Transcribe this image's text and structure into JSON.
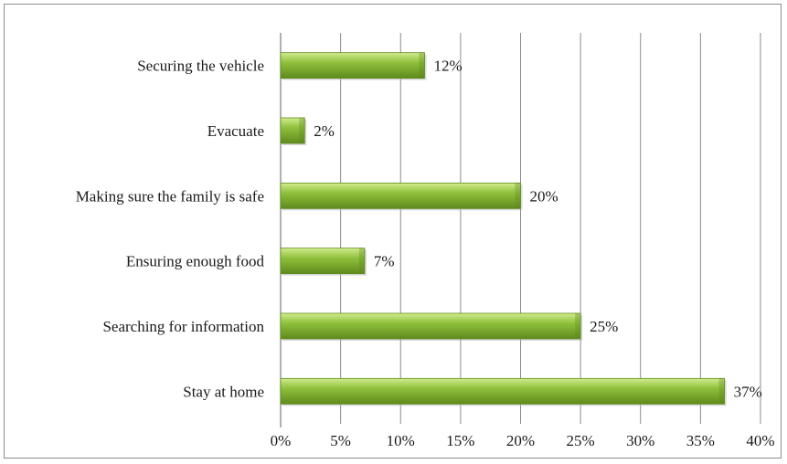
{
  "chart_data": {
    "type": "bar",
    "orientation": "horizontal",
    "categories": [
      "Securing the vehicle",
      "Evacuate",
      "Making sure the family is safe",
      "Ensuring enough food",
      "Searching for information",
      "Stay at home"
    ],
    "values": [
      12,
      2,
      20,
      7,
      25,
      37
    ],
    "data_labels": [
      "12%",
      "2%",
      "20%",
      "7%",
      "25%",
      "37%"
    ],
    "x_ticks": [
      0,
      5,
      10,
      15,
      20,
      25,
      30,
      35,
      40
    ],
    "x_tick_labels": [
      "0%",
      "5%",
      "10%",
      "15%",
      "20%",
      "25%",
      "30%",
      "35%",
      "40%"
    ],
    "xlim": [
      0,
      40
    ],
    "title": "",
    "xlabel": "",
    "ylabel": "",
    "grid": "vertical",
    "legend": "none",
    "bar_color": "#8dbf3a",
    "bar_color_light": "#d2ec8e",
    "bar_color_dark": "#5f8a1e",
    "grid_color": "#8c8c8c"
  }
}
